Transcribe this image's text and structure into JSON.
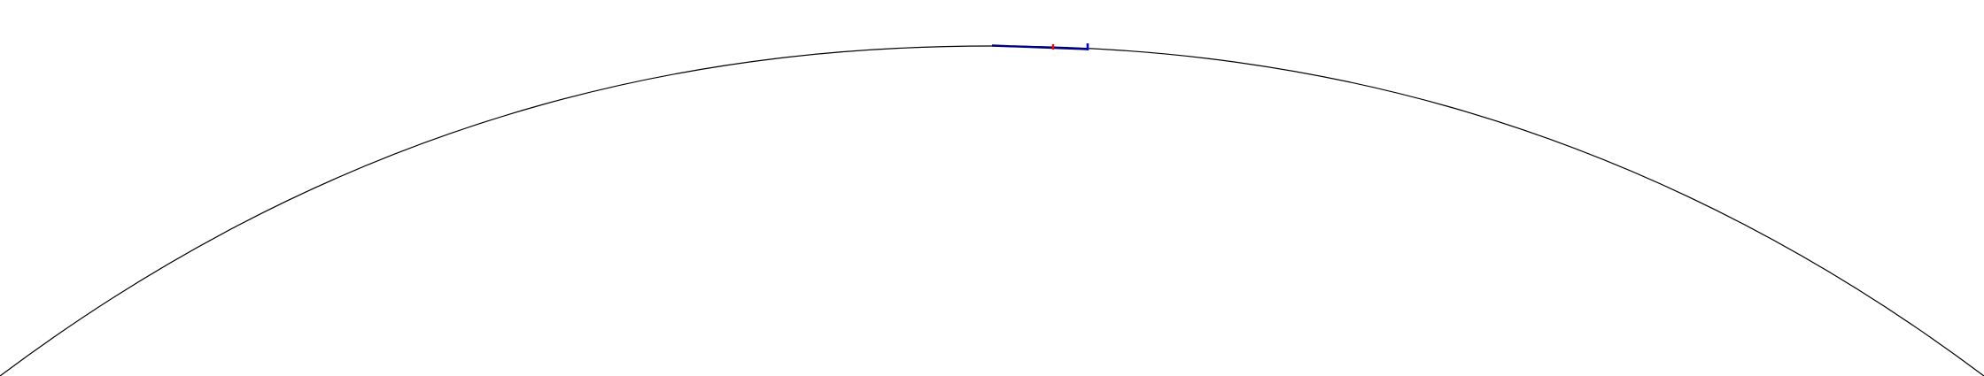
{
  "diagram": {
    "background_color": "#ffffff",
    "arc": {
      "stroke_color": "#000000",
      "icon": "curve-line"
    },
    "markers": [
      {
        "name": "navy-segment",
        "color": "#00007f"
      },
      {
        "name": "red-tick",
        "color": "#ff0000"
      },
      {
        "name": "blue-tick",
        "color": "#0000ff"
      }
    ]
  }
}
